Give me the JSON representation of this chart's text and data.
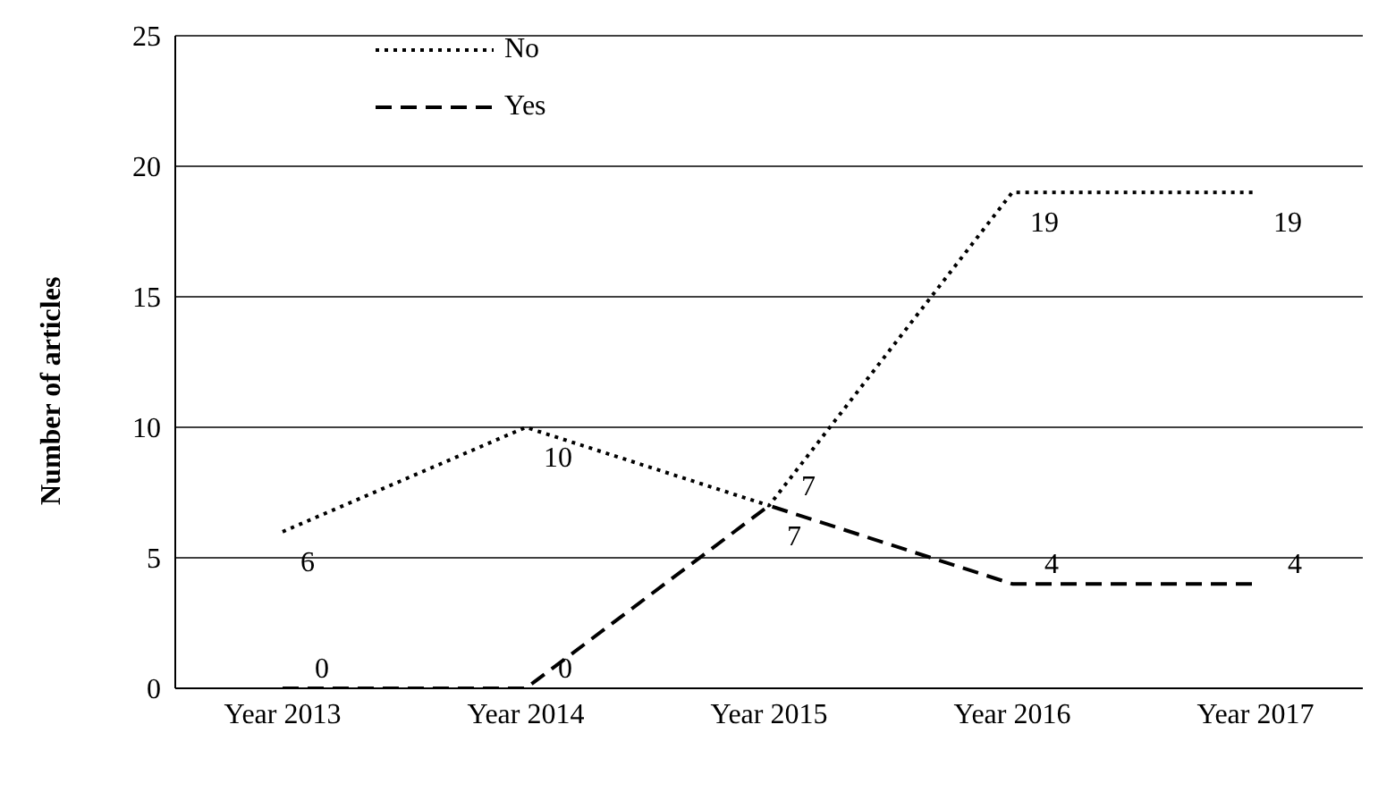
{
  "chart_data": {
    "type": "line",
    "ylabel": "Number of articles",
    "categories": [
      "Year 2013",
      "Year 2014",
      "Year 2015",
      "Year 2016",
      "Year 2017"
    ],
    "series": [
      {
        "name": "No",
        "color": "#000000",
        "line_style": "dotted",
        "values": [
          6,
          10,
          7,
          19,
          19
        ]
      },
      {
        "name": "Yes",
        "color": "#000000",
        "line_style": "dashed",
        "values": [
          0,
          0,
          7,
          4,
          4
        ]
      }
    ],
    "ylim": [
      0,
      25
    ],
    "yticks": [
      0,
      5,
      10,
      15,
      20,
      25
    ],
    "grid": "y",
    "legend": "top left",
    "marker": "none",
    "data_labels": true
  }
}
